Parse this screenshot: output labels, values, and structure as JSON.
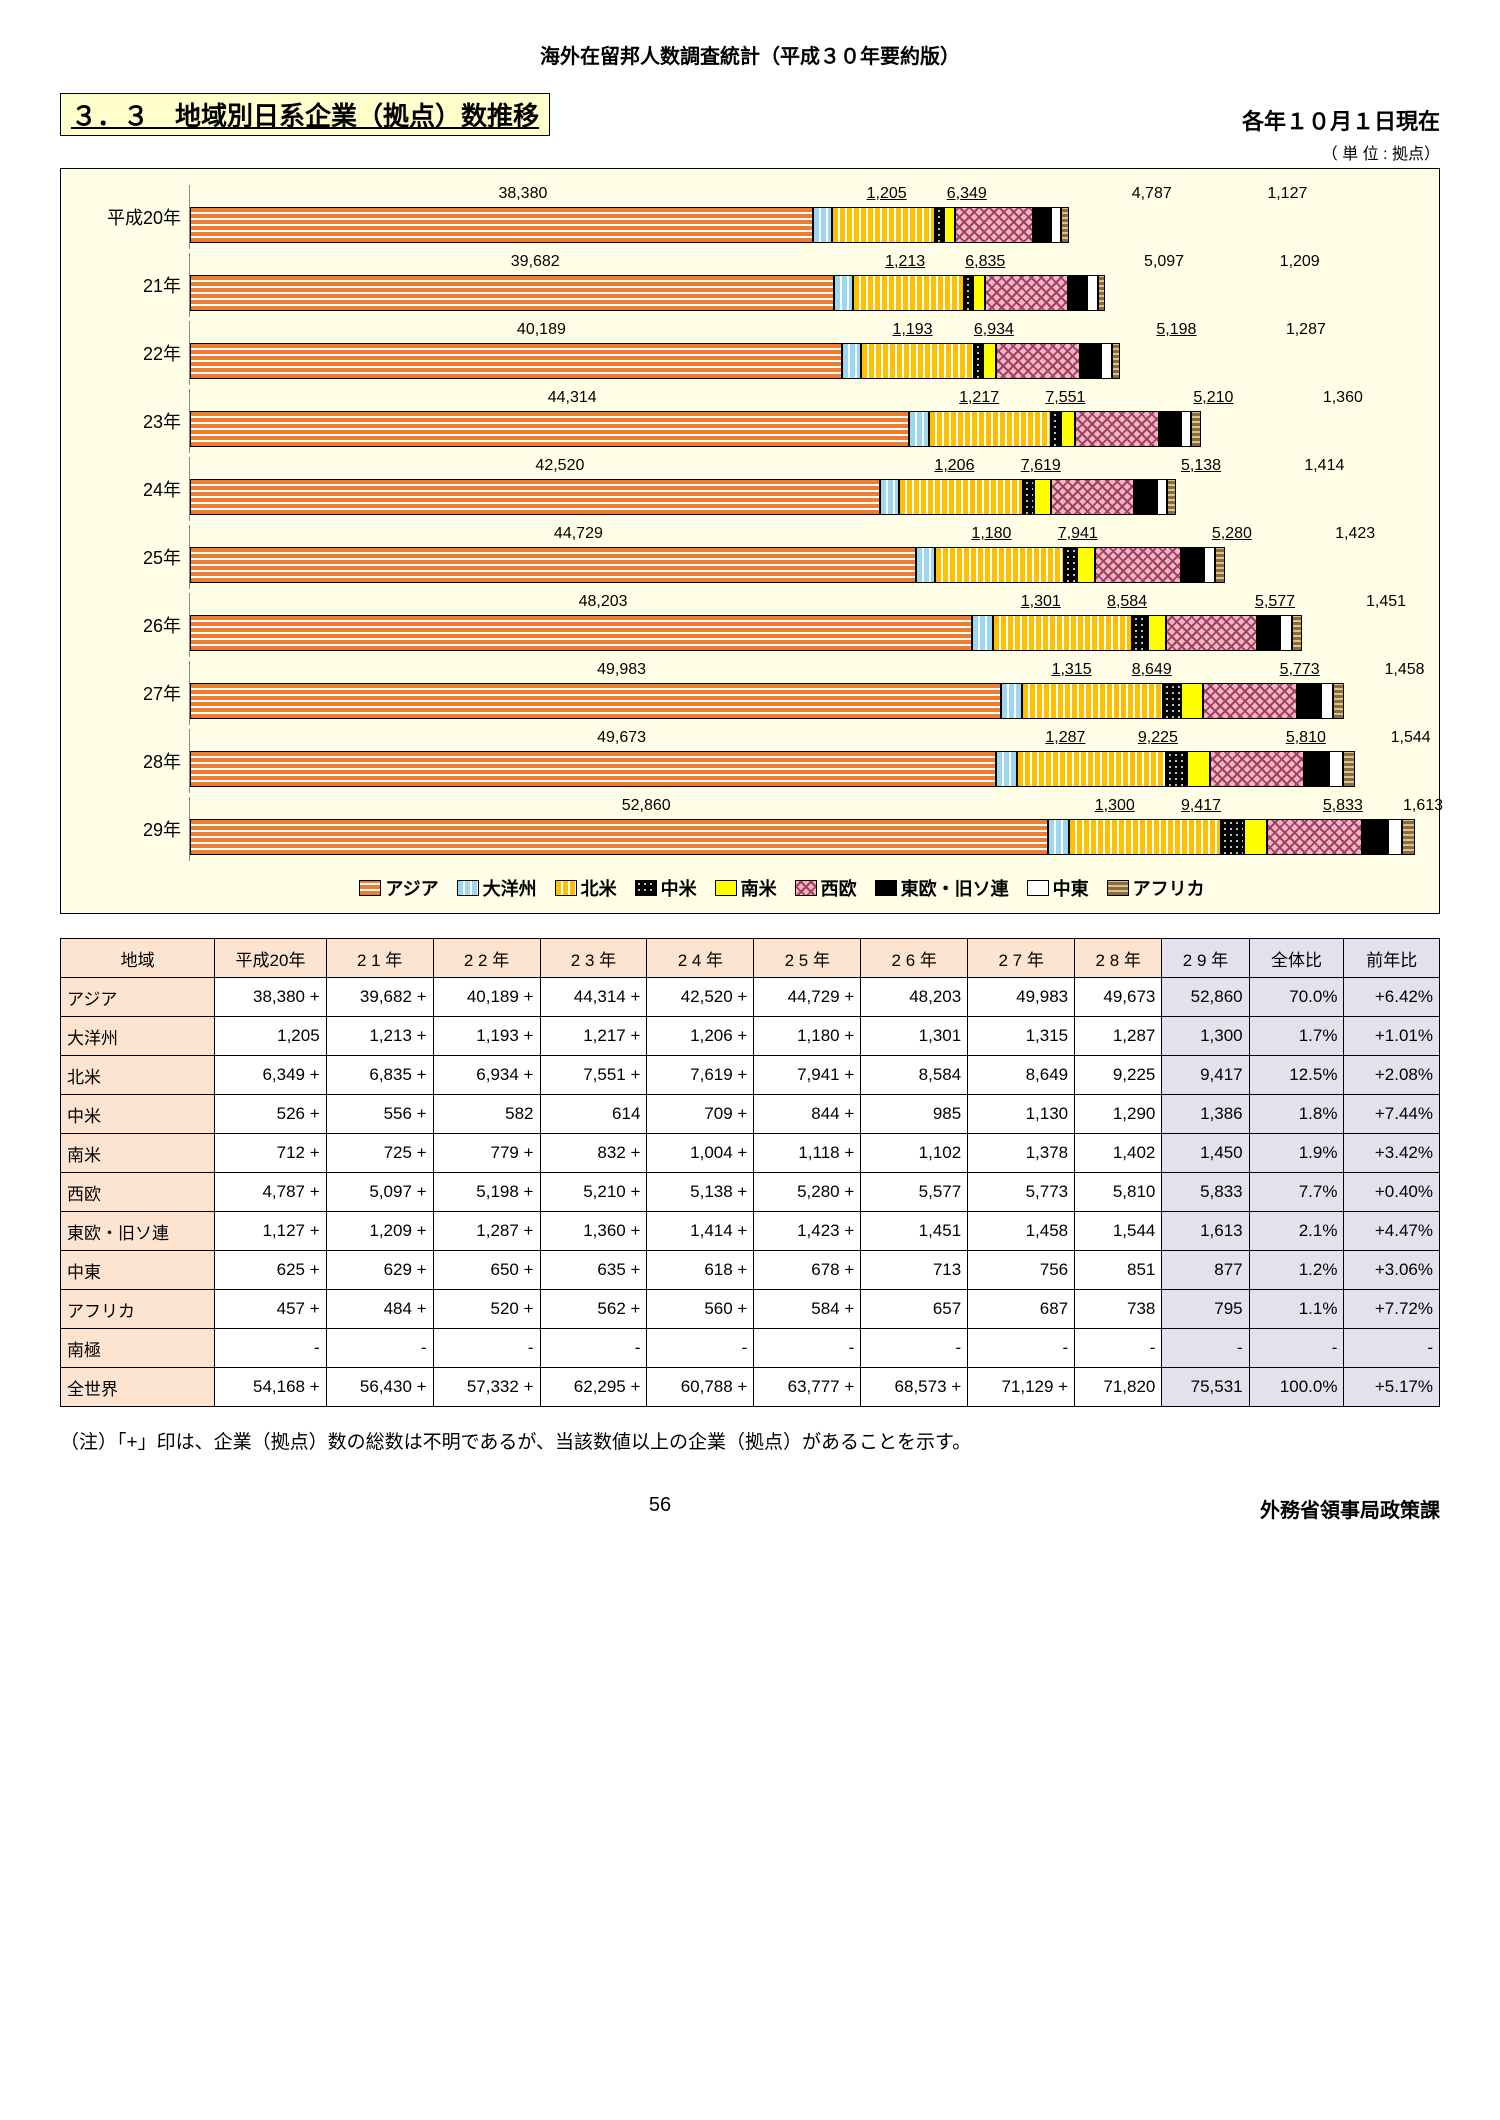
{
  "doc_header": "海外在留邦人数調査統計（平成３０年要約版）",
  "section_title": "３．３　地域別日系企業（拠点）数推移",
  "asof": "各年１０月１日現在",
  "unit": "（ 単 位 :  拠点）",
  "legend": {
    "asia": "アジア",
    "oceania": "大洋州",
    "na": "北米",
    "ca": "中米",
    "sa": "南米",
    "we": "西欧",
    "ee": "東欧・旧ソ連",
    "me": "中東",
    "af": "アフリカ"
  },
  "chart": {
    "scale_max": 76000,
    "years": [
      {
        "label": "平成20年",
        "vals": {
          "asia": 38380,
          "oceania": 1205,
          "na": 6349,
          "ca": 526,
          "sa": 712,
          "we": 4787,
          "ee": 1127,
          "me": 625,
          "af": 457
        },
        "top_labels": [
          {
            "v": "38,380",
            "x": 0.27
          },
          {
            "v": "1,205",
            "x": 0.565,
            "u": 1
          },
          {
            "v": "6,349",
            "x": 0.63,
            "u": 1
          },
          {
            "v": "4,787",
            "x": 0.78
          },
          {
            "v": "1,127",
            "x": 0.89
          }
        ]
      },
      {
        "label": "21年",
        "vals": {
          "asia": 39682,
          "oceania": 1213,
          "na": 6835,
          "ca": 556,
          "sa": 725,
          "we": 5097,
          "ee": 1209,
          "me": 629,
          "af": 484
        },
        "top_labels": [
          {
            "v": "39,682",
            "x": 0.28
          },
          {
            "v": "1,213",
            "x": 0.58,
            "u": 1
          },
          {
            "v": "6,835",
            "x": 0.645,
            "u": 1
          },
          {
            "v": "5,097",
            "x": 0.79
          },
          {
            "v": "1,209",
            "x": 0.9
          }
        ]
      },
      {
        "label": "22年",
        "vals": {
          "asia": 40189,
          "oceania": 1193,
          "na": 6934,
          "ca": 582,
          "sa": 779,
          "we": 5198,
          "ee": 1287,
          "me": 650,
          "af": 520
        },
        "top_labels": [
          {
            "v": "40,189",
            "x": 0.285
          },
          {
            "v": "1,193",
            "x": 0.586,
            "u": 1
          },
          {
            "v": "6,934",
            "x": 0.652,
            "u": 1
          },
          {
            "v": "5,198",
            "x": 0.8,
            "u": 1
          },
          {
            "v": "1,287",
            "x": 0.905
          }
        ]
      },
      {
        "label": "23年",
        "vals": {
          "asia": 44314,
          "oceania": 1217,
          "na": 7551,
          "ca": 614,
          "sa": 832,
          "we": 5210,
          "ee": 1360,
          "me": 635,
          "af": 562
        },
        "top_labels": [
          {
            "v": "44,314",
            "x": 0.31
          },
          {
            "v": "1,217",
            "x": 0.64,
            "u": 1
          },
          {
            "v": "7,551",
            "x": 0.71,
            "u": 1
          },
          {
            "v": "5,210",
            "x": 0.83,
            "u": 1
          },
          {
            "v": "1,360",
            "x": 0.935
          }
        ]
      },
      {
        "label": "24年",
        "vals": {
          "asia": 42520,
          "oceania": 1206,
          "na": 7619,
          "ca": 709,
          "sa": 1004,
          "we": 5138,
          "ee": 1414,
          "me": 618,
          "af": 560
        },
        "top_labels": [
          {
            "v": "42,520",
            "x": 0.3
          },
          {
            "v": "1,206",
            "x": 0.62,
            "u": 1
          },
          {
            "v": "7,619",
            "x": 0.69,
            "u": 1
          },
          {
            "v": "5,138",
            "x": 0.82,
            "u": 1
          },
          {
            "v": "1,414",
            "x": 0.92
          }
        ]
      },
      {
        "label": "25年",
        "vals": {
          "asia": 44729,
          "oceania": 1180,
          "na": 7941,
          "ca": 844,
          "sa": 1118,
          "we": 5280,
          "ee": 1423,
          "me": 678,
          "af": 584
        },
        "top_labels": [
          {
            "v": "44,729",
            "x": 0.315
          },
          {
            "v": "1,180",
            "x": 0.65,
            "u": 1
          },
          {
            "v": "7,941",
            "x": 0.72,
            "u": 1
          },
          {
            "v": "5,280",
            "x": 0.845,
            "u": 1
          },
          {
            "v": "1,423",
            "x": 0.945
          }
        ]
      },
      {
        "label": "26年",
        "vals": {
          "asia": 48203,
          "oceania": 1301,
          "na": 8584,
          "ca": 985,
          "sa": 1102,
          "we": 5577,
          "ee": 1451,
          "me": 713,
          "af": 657
        },
        "top_labels": [
          {
            "v": "48,203",
            "x": 0.335
          },
          {
            "v": "1,301",
            "x": 0.69,
            "u": 1
          },
          {
            "v": "8,584",
            "x": 0.76,
            "u": 1
          },
          {
            "v": "5,577",
            "x": 0.88,
            "u": 1
          },
          {
            "v": "1,451",
            "x": 0.97
          }
        ]
      },
      {
        "label": "27年",
        "vals": {
          "asia": 49983,
          "oceania": 1315,
          "na": 8649,
          "ca": 1130,
          "sa": 1378,
          "we": 5773,
          "ee": 1458,
          "me": 756,
          "af": 687
        },
        "top_labels": [
          {
            "v": "49,983",
            "x": 0.35
          },
          {
            "v": "1,315",
            "x": 0.715,
            "u": 1
          },
          {
            "v": "8,649",
            "x": 0.78,
            "u": 1
          },
          {
            "v": "5,773",
            "x": 0.9,
            "u": 1
          },
          {
            "v": "1,458",
            "x": 0.985
          }
        ]
      },
      {
        "label": "28年",
        "vals": {
          "asia": 49673,
          "oceania": 1287,
          "na": 9225,
          "ca": 1290,
          "sa": 1402,
          "we": 5810,
          "ee": 1544,
          "me": 851,
          "af": 738
        },
        "top_labels": [
          {
            "v": "49,673",
            "x": 0.35
          },
          {
            "v": "1,287",
            "x": 0.71,
            "u": 1
          },
          {
            "v": "9,225",
            "x": 0.785,
            "u": 1
          },
          {
            "v": "5,810",
            "x": 0.905,
            "u": 1
          },
          {
            "v": "1,544",
            "x": 0.99
          }
        ]
      },
      {
        "label": "29年",
        "vals": {
          "asia": 52860,
          "oceania": 1300,
          "na": 9417,
          "ca": 1386,
          "sa": 1450,
          "we": 5833,
          "ee": 1613,
          "me": 877,
          "af": 795
        },
        "top_labels": [
          {
            "v": "52,860",
            "x": 0.37
          },
          {
            "v": "1,300",
            "x": 0.75,
            "u": 1
          },
          {
            "v": "9,417",
            "x": 0.82,
            "u": 1
          },
          {
            "v": "5,833",
            "x": 0.935,
            "u": 1
          },
          {
            "v": "1,613",
            "x": 1.0
          }
        ]
      }
    ]
  },
  "table": {
    "columns": [
      "地域",
      "平成20年",
      "2 1 年",
      "2 2 年",
      "2 3 年",
      "2 4 年",
      "2 5 年",
      "2 6 年",
      "2 7 年",
      "2 8 年",
      "2 9 年",
      "全体比",
      "前年比"
    ],
    "rows": [
      [
        "アジア",
        "38,380 +",
        "39,682 +",
        "40,189 +",
        "44,314 +",
        "42,520 +",
        "44,729 +",
        "48,203",
        "49,983",
        "49,673",
        "52,860",
        "70.0%",
        "+6.42%"
      ],
      [
        "大洋州",
        "1,205",
        "1,213 +",
        "1,193 +",
        "1,217 +",
        "1,206 +",
        "1,180 +",
        "1,301",
        "1,315",
        "1,287",
        "1,300",
        "1.7%",
        "+1.01%"
      ],
      [
        "北米",
        "6,349 +",
        "6,835 +",
        "6,934 +",
        "7,551 +",
        "7,619 +",
        "7,941 +",
        "8,584",
        "8,649",
        "9,225",
        "9,417",
        "12.5%",
        "+2.08%"
      ],
      [
        "中米",
        "526 +",
        "556 +",
        "582",
        "614",
        "709 +",
        "844 +",
        "985",
        "1,130",
        "1,290",
        "1,386",
        "1.8%",
        "+7.44%"
      ],
      [
        "南米",
        "712 +",
        "725 +",
        "779 +",
        "832 +",
        "1,004 +",
        "1,118 +",
        "1,102",
        "1,378",
        "1,402",
        "1,450",
        "1.9%",
        "+3.42%"
      ],
      [
        "西欧",
        "4,787 +",
        "5,097 +",
        "5,198 +",
        "5,210 +",
        "5,138 +",
        "5,280 +",
        "5,577",
        "5,773",
        "5,810",
        "5,833",
        "7.7%",
        "+0.40%"
      ],
      [
        "東欧・旧ソ連",
        "1,127 +",
        "1,209 +",
        "1,287 +",
        "1,360 +",
        "1,414 +",
        "1,423 +",
        "1,451",
        "1,458",
        "1,544",
        "1,613",
        "2.1%",
        "+4.47%"
      ],
      [
        "中東",
        "625 +",
        "629 +",
        "650 +",
        "635 +",
        "618 +",
        "678 +",
        "713",
        "756",
        "851",
        "877",
        "1.2%",
        "+3.06%"
      ],
      [
        "アフリカ",
        "457 +",
        "484 +",
        "520 +",
        "562 +",
        "560 +",
        "584 +",
        "657",
        "687",
        "738",
        "795",
        "1.1%",
        "+7.72%"
      ],
      [
        "南極",
        "-",
        "-",
        "-",
        "-",
        "-",
        "-",
        "-",
        "-",
        "-",
        "-",
        "-",
        "-"
      ],
      [
        "全世界",
        "54,168 +",
        "56,430 +",
        "57,332 +",
        "62,295 +",
        "60,788 +",
        "63,777 +",
        "68,573 +",
        "71,129 +",
        "71,820",
        "75,531",
        "100.0%",
        "+5.17%"
      ]
    ]
  },
  "note": "（注）「+」印は、企業（拠点）数の総数は不明であるが、当該数値以上の企業（拠点）があることを示す。",
  "page_number": "56",
  "source": "外務省領事局政策課"
}
